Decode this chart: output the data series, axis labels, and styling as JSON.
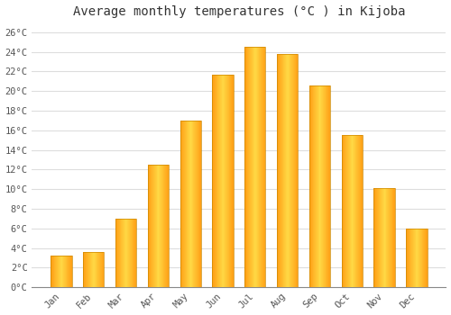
{
  "title": "Average monthly temperatures (°C ) in Kijoba",
  "months": [
    "Jan",
    "Feb",
    "Mar",
    "Apr",
    "May",
    "Jun",
    "Jul",
    "Aug",
    "Sep",
    "Oct",
    "Nov",
    "Dec"
  ],
  "values": [
    3.2,
    3.6,
    7.0,
    12.5,
    17.0,
    21.7,
    24.5,
    23.8,
    20.6,
    15.5,
    10.1,
    6.0
  ],
  "bar_color_main": "#FFA500",
  "bar_color_light": "#FFCC44",
  "bar_edge_color": "#CC8800",
  "ylim": [
    0,
    27
  ],
  "yticks": [
    0,
    2,
    4,
    6,
    8,
    10,
    12,
    14,
    16,
    18,
    20,
    22,
    24,
    26
  ],
  "ytick_labels": [
    "0°C",
    "2°C",
    "4°C",
    "6°C",
    "8°C",
    "10°C",
    "12°C",
    "14°C",
    "16°C",
    "18°C",
    "20°C",
    "22°C",
    "24°C",
    "26°C"
  ],
  "background_color": "#FFFFFF",
  "plot_bg_color": "#FFFFFF",
  "grid_color": "#DDDDDD",
  "title_fontsize": 10,
  "tick_fontsize": 7.5,
  "bar_width": 0.65
}
